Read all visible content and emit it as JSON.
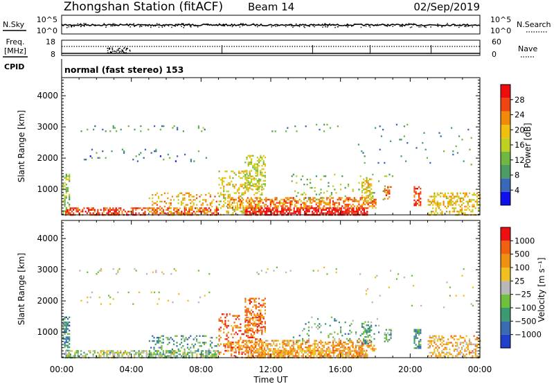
{
  "header": {
    "title": "Zhongshan Station (fitACF)",
    "beam": "Beam 14",
    "date": "02/Sep/2019"
  },
  "noise_panel": {
    "left_label": "N.Sky",
    "right_label": "N.Search",
    "left_ticks": [
      "10^5",
      "10^0"
    ],
    "right_ticks": [
      "10^5",
      "10^0"
    ]
  },
  "freq_panel": {
    "left_label_1": "Freq.",
    "left_label_2": "[MHz]",
    "right_label": "Nave",
    "left_ticks": [
      "18",
      "8"
    ],
    "right_ticks": [
      "60",
      "0"
    ]
  },
  "cpid": {
    "label": "CPID",
    "value": "normal (fast stereo) 153"
  },
  "time_axis": {
    "label": "Time UT",
    "ticks": [
      "00:00",
      "04:00",
      "08:00",
      "12:00",
      "16:00",
      "20:00",
      "00:00"
    ]
  },
  "chart_data": [
    {
      "type": "heatmap",
      "title": "",
      "ylabel": "Slant Range [km]",
      "xlabel": "Time UT",
      "y_ticks": [
        "4000",
        "3000",
        "2000",
        "1000"
      ],
      "ylim": [
        180,
        4580
      ],
      "xlim_hours": [
        0,
        24
      ],
      "colorbar": {
        "label": "Power [dB]",
        "ticks": [
          "28",
          "24",
          "20",
          "16",
          "12",
          "8",
          "4"
        ],
        "colors": [
          "#1010ee",
          "#3a68b8",
          "#4c9c64",
          "#70b840",
          "#c0d020",
          "#f0c010",
          "#f08a08",
          "#f04510",
          "#ee0c0c"
        ],
        "range": [
          0,
          30
        ]
      },
      "scatter_regions": [
        {
          "t": [
            0.05,
            0.45
          ],
          "r": [
            180,
            1500
          ],
          "level": 0.45,
          "density": 0.5
        },
        {
          "t": [
            0.2,
            9.0
          ],
          "r": [
            180,
            420
          ],
          "level": 0.85,
          "density": 0.55
        },
        {
          "t": [
            5.0,
            9.0
          ],
          "r": [
            180,
            900
          ],
          "level": 0.65,
          "density": 0.22
        },
        {
          "t": [
            1.0,
            8.5
          ],
          "r": [
            2850,
            3050
          ],
          "level": 0.3,
          "density": 0.08
        },
        {
          "t": [
            1.0,
            8.5
          ],
          "r": [
            1900,
            2300
          ],
          "level": 0.25,
          "density": 0.04
        },
        {
          "t": [
            9.0,
            11.5
          ],
          "r": [
            180,
            1600
          ],
          "level": 0.55,
          "density": 0.28
        },
        {
          "t": [
            10.5,
            11.7
          ],
          "r": [
            1000,
            2100
          ],
          "level": 0.5,
          "density": 0.45
        },
        {
          "t": [
            10.5,
            17.5
          ],
          "r": [
            180,
            420
          ],
          "level": 0.97,
          "density": 0.75
        },
        {
          "t": [
            9.5,
            18.0
          ],
          "r": [
            380,
            750
          ],
          "level": 0.75,
          "density": 0.5
        },
        {
          "t": [
            13.0,
            19.0
          ],
          "r": [
            700,
            1500
          ],
          "level": 0.4,
          "density": 0.07
        },
        {
          "t": [
            17.2,
            17.8
          ],
          "r": [
            650,
            1350
          ],
          "level": 0.6,
          "density": 0.45
        },
        {
          "t": [
            18.5,
            18.9
          ],
          "r": [
            700,
            1100
          ],
          "level": 0.75,
          "density": 0.5
        },
        {
          "t": [
            20.2,
            20.6
          ],
          "r": [
            500,
            1100
          ],
          "level": 0.9,
          "density": 0.6
        },
        {
          "t": [
            21.0,
            24.0
          ],
          "r": [
            180,
            900
          ],
          "level": 0.6,
          "density": 0.4
        },
        {
          "t": [
            11.0,
            16.0
          ],
          "r": [
            2850,
            3100
          ],
          "level": 0.3,
          "density": 0.05
        },
        {
          "t": [
            17.0,
            24.0
          ],
          "r": [
            1800,
            3100
          ],
          "level": 0.3,
          "density": 0.02
        }
      ]
    },
    {
      "type": "heatmap",
      "title": "",
      "ylabel": "Slant Range [km]",
      "xlabel": "Time UT",
      "y_ticks": [
        "4000",
        "3000",
        "2000",
        "1000"
      ],
      "ylim": [
        180,
        4580
      ],
      "xlim_hours": [
        0,
        24
      ],
      "colorbar": {
        "label": "Velocity [m s⁻¹]",
        "ticks": [
          "1000",
          "500",
          "100",
          "25",
          "−25",
          "−100",
          "−500",
          "−1000"
        ],
        "colors": [
          "#2040cc",
          "#3a6ab0",
          "#3c9a70",
          "#70c040",
          "#b8b8b8",
          "#f0c020",
          "#f09010",
          "#f06010",
          "#ee1010"
        ],
        "range": [
          -1200,
          1200
        ]
      },
      "scatter_regions": [
        {
          "t": [
            0.05,
            0.45
          ],
          "r": [
            180,
            1500
          ],
          "level": 0.25,
          "density": 0.5
        },
        {
          "t": [
            0.2,
            9.0
          ],
          "r": [
            180,
            420
          ],
          "level": 0.45,
          "density": 0.55
        },
        {
          "t": [
            5.0,
            9.0
          ],
          "r": [
            180,
            900
          ],
          "level": 0.3,
          "density": 0.22
        },
        {
          "t": [
            1.0,
            8.5
          ],
          "r": [
            2850,
            3050
          ],
          "level": 0.5,
          "density": 0.08
        },
        {
          "t": [
            1.0,
            8.5
          ],
          "r": [
            1900,
            2300
          ],
          "level": 0.5,
          "density": 0.04
        },
        {
          "t": [
            9.0,
            11.5
          ],
          "r": [
            180,
            1600
          ],
          "level": 0.82,
          "density": 0.3
        },
        {
          "t": [
            10.5,
            11.7
          ],
          "r": [
            1000,
            2100
          ],
          "level": 0.78,
          "density": 0.45
        },
        {
          "t": [
            10.5,
            17.5
          ],
          "r": [
            180,
            420
          ],
          "level": 0.68,
          "density": 0.75
        },
        {
          "t": [
            9.5,
            18.0
          ],
          "r": [
            380,
            750
          ],
          "level": 0.7,
          "density": 0.5
        },
        {
          "t": [
            13.0,
            19.0
          ],
          "r": [
            700,
            1500
          ],
          "level": 0.35,
          "density": 0.07
        },
        {
          "t": [
            17.2,
            17.8
          ],
          "r": [
            650,
            1350
          ],
          "level": 0.3,
          "density": 0.45
        },
        {
          "t": [
            18.5,
            18.9
          ],
          "r": [
            700,
            1100
          ],
          "level": 0.35,
          "density": 0.5
        },
        {
          "t": [
            20.2,
            20.6
          ],
          "r": [
            500,
            1100
          ],
          "level": 0.25,
          "density": 0.6
        },
        {
          "t": [
            21.0,
            24.0
          ],
          "r": [
            180,
            900
          ],
          "level": 0.65,
          "density": 0.4
        },
        {
          "t": [
            11.0,
            16.0
          ],
          "r": [
            2850,
            3100
          ],
          "level": 0.5,
          "density": 0.05
        },
        {
          "t": [
            17.0,
            24.0
          ],
          "r": [
            1800,
            3100
          ],
          "level": 0.5,
          "density": 0.02
        }
      ]
    }
  ]
}
